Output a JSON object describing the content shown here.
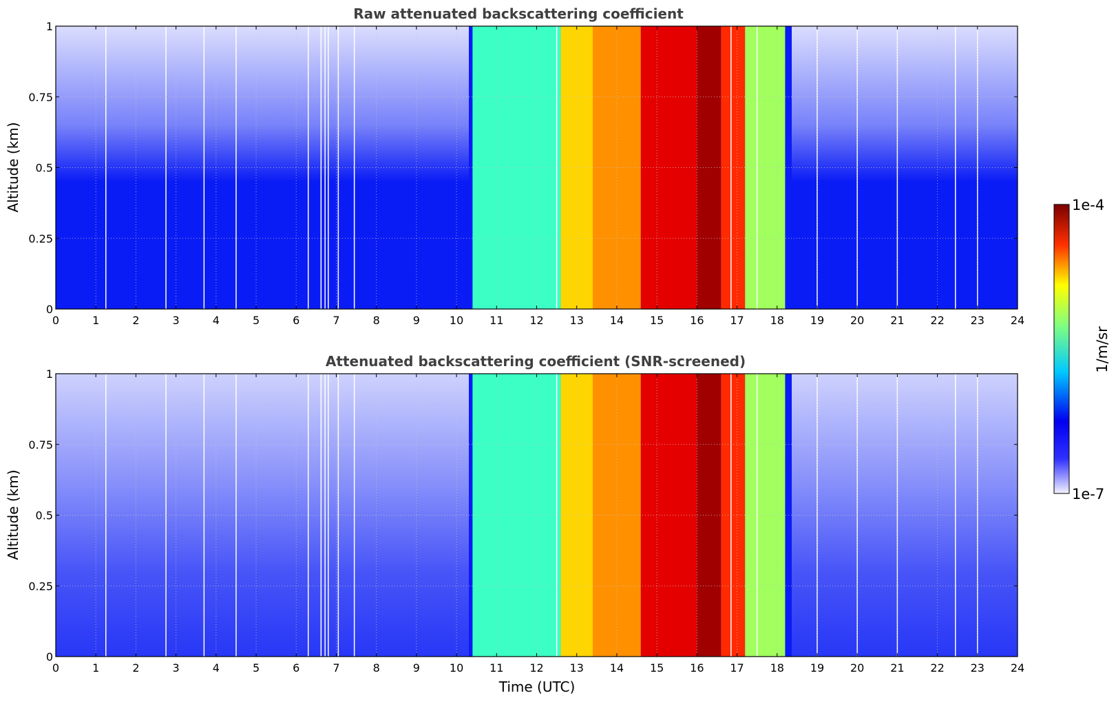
{
  "chart_data": [
    {
      "type": "heatmap",
      "title": "Raw attenuated backscattering coefficient",
      "xlabel": "",
      "ylabel": "Altitude (km)",
      "xlim": [
        0,
        24
      ],
      "ylim": [
        0,
        1
      ],
      "xticks": [
        "0",
        "1",
        "2",
        "3",
        "4",
        "5",
        "6",
        "7",
        "8",
        "9",
        "10",
        "11",
        "12",
        "13",
        "14",
        "15",
        "16",
        "17",
        "18",
        "19",
        "20",
        "21",
        "22",
        "23",
        "24"
      ],
      "yticks": [
        "0",
        "0.25",
        "0.5",
        "0.75",
        "1"
      ],
      "grid": true,
      "colormap": "jet",
      "clim_labels": [
        "1e-7",
        "1e-4"
      ],
      "background_level_log10": -6.3,
      "cloud_layers": [
        {
          "time_start": 10.4,
          "time_end": 12.6,
          "level_log10": -5.7
        },
        {
          "time_start": 12.6,
          "time_end": 13.4,
          "level_log10": -5.0
        },
        {
          "time_start": 13.4,
          "time_end": 14.6,
          "level_log10": -4.8
        },
        {
          "time_start": 14.6,
          "time_end": 16.0,
          "level_log10": -4.3
        },
        {
          "time_start": 16.0,
          "time_end": 16.6,
          "level_log10": -4.1
        },
        {
          "time_start": 16.6,
          "time_end": 17.2,
          "level_log10": -4.5
        },
        {
          "time_start": 17.2,
          "time_end": 18.2,
          "level_log10": -5.4
        }
      ],
      "gap_times": [
        1.25,
        2.75,
        3.7,
        4.5,
        6.3,
        6.62,
        6.72,
        6.8,
        7.05,
        7.45,
        12.5,
        16.85,
        17.5,
        19.0,
        20.0,
        21.0,
        22.45,
        23.0
      ]
    },
    {
      "type": "heatmap",
      "title": "Attenuated backscattering coefficient (SNR-screened)",
      "xlabel": "Time (UTC)",
      "ylabel": "Altitude (km)",
      "xlim": [
        0,
        24
      ],
      "ylim": [
        0,
        1
      ],
      "xticks": [
        "0",
        "1",
        "2",
        "3",
        "4",
        "5",
        "6",
        "7",
        "8",
        "9",
        "10",
        "11",
        "12",
        "13",
        "14",
        "15",
        "16",
        "17",
        "18",
        "19",
        "20",
        "21",
        "22",
        "23",
        "24"
      ],
      "yticks": [
        "0",
        "0.25",
        "0.5",
        "0.75",
        "1"
      ],
      "grid": true,
      "colormap": "jet",
      "clim_labels": [
        "1e-7",
        "1e-4"
      ],
      "background_level_log10": -6.3,
      "cloud_layers": [
        {
          "time_start": 10.4,
          "time_end": 12.6,
          "level_log10": -5.7
        },
        {
          "time_start": 12.6,
          "time_end": 13.4,
          "level_log10": -5.0
        },
        {
          "time_start": 13.4,
          "time_end": 14.6,
          "level_log10": -4.8
        },
        {
          "time_start": 14.6,
          "time_end": 16.0,
          "level_log10": -4.3
        },
        {
          "time_start": 16.0,
          "time_end": 16.6,
          "level_log10": -4.1
        },
        {
          "time_start": 16.6,
          "time_end": 17.2,
          "level_log10": -4.5
        },
        {
          "time_start": 17.2,
          "time_end": 18.2,
          "level_log10": -5.4
        }
      ],
      "gap_times": [
        1.25,
        2.75,
        3.7,
        4.5,
        6.3,
        6.62,
        6.72,
        6.8,
        7.05,
        7.45,
        12.5,
        16.85,
        17.5,
        19.0,
        20.0,
        21.0,
        22.45,
        23.0
      ]
    }
  ],
  "colorbar": {
    "max_label": "1e-4",
    "min_label": "1e-7",
    "unit_label": "1/m/sr"
  }
}
